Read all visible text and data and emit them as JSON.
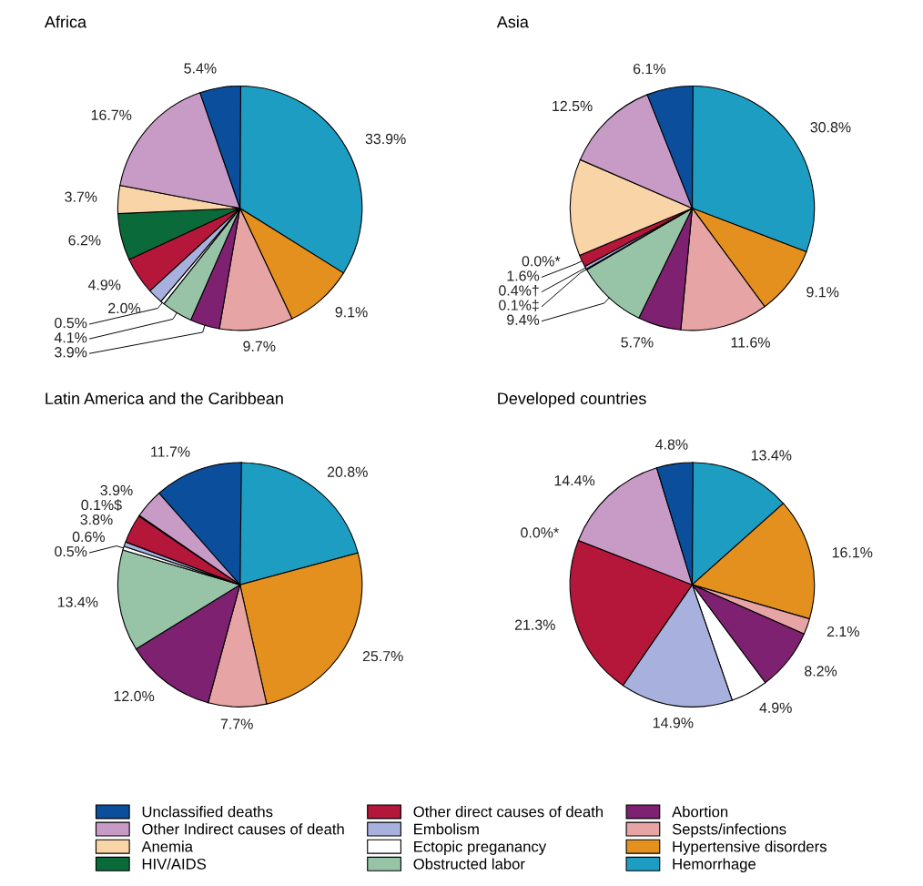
{
  "chart_data": [
    {
      "type": "pie",
      "title": "Africa",
      "categories": [
        "Hemorrhage",
        "Hypertensive disorders",
        "Sepsts/infections",
        "Abortion",
        "Obstructed labor",
        "Ectopic preganancy",
        "Embolism",
        "Other direct causes of death",
        "HIV/AIDS",
        "Anemia",
        "Other Indirect causes of death",
        "Unclassified deaths"
      ],
      "colors": [
        "#1e9dc2",
        "#e3901f",
        "#e6a4a4",
        "#7d2170",
        "#97c4a6",
        "#ffffff",
        "#a8b1de",
        "#b5173b",
        "#0b6a3a",
        "#f9d4a6",
        "#c89bc7",
        "#0b4f9c"
      ],
      "values": [
        33.9,
        9.1,
        9.7,
        3.9,
        4.1,
        0.5,
        2.0,
        4.9,
        6.2,
        3.7,
        16.7,
        5.4
      ],
      "value_labels": [
        "33.9%",
        "9.1%",
        "9.7%",
        "3.9%",
        "4.1%",
        "0.5%",
        "2.0%",
        "4.9%",
        "6.2%",
        "3.7%",
        "16.7%",
        "5.4%"
      ],
      "legend": "bottom"
    },
    {
      "type": "pie",
      "title": "Asia",
      "categories": [
        null,
        null,
        null,
        null,
        null,
        null,
        null,
        null,
        null,
        null,
        null,
        null
      ],
      "colors": [
        "#1e9dc2",
        "#e3901f",
        "#e6a4a4",
        "#7d2170",
        "#97c4a6",
        "#ffffff",
        "#a8b1de",
        "#b5173b",
        "#0b6a3a",
        "#f9d4a6",
        "#c89bc7",
        "#0b4f9c"
      ],
      "values": [
        30.8,
        9.1,
        11.6,
        5.7,
        9.4,
        0.1,
        0.4,
        1.6,
        0.0,
        12.8,
        12.5,
        6.1
      ],
      "value_labels": [
        "30.8%",
        "9.1%",
        "11.6%",
        "5.7%",
        "9.4%",
        "0.1%‡",
        "0.4%†",
        "1.6%",
        "0.0%*",
        null,
        "12.5%",
        "6.1%"
      ]
    },
    {
      "type": "pie",
      "title": "Latin America and the Caribbean",
      "categories": [
        null,
        null,
        null,
        null,
        null,
        null,
        null,
        null,
        null,
        null,
        null,
        null
      ],
      "colors": [
        "#1e9dc2",
        "#e3901f",
        "#e6a4a4",
        "#7d2170",
        "#97c4a6",
        "#ffffff",
        "#a8b1de",
        "#b5173b",
        "#0b6a3a",
        "#f9d4a6",
        "#c89bc7",
        "#0b4f9c"
      ],
      "values": [
        20.8,
        25.7,
        7.7,
        12.0,
        13.4,
        0.5,
        0.6,
        3.8,
        0.1,
        null,
        3.9,
        11.7
      ],
      "value_labels": [
        "20.8%",
        "25.7%",
        "7.7%",
        "12.0%",
        "13.4%",
        "0.5%",
        "0.6%",
        "3.8%",
        "0.1%$",
        null,
        "3.9%",
        "11.7%"
      ]
    },
    {
      "type": "pie",
      "title": "Developed countries",
      "categories": [
        null,
        null,
        null,
        null,
        null,
        null,
        null,
        null,
        null,
        null,
        null,
        null
      ],
      "colors": [
        "#1e9dc2",
        "#e3901f",
        "#e6a4a4",
        "#7d2170",
        "#97c4a6",
        "#ffffff",
        "#a8b1de",
        "#b5173b",
        "#0b6a3a",
        "#f9d4a6",
        "#c89bc7",
        "#0b4f9c"
      ],
      "values": [
        13.4,
        16.1,
        2.1,
        8.2,
        null,
        4.9,
        14.9,
        21.3,
        0.0,
        null,
        14.4,
        4.8
      ],
      "value_labels": [
        "13.4%",
        "16.1%",
        "2.1%",
        "8.2%",
        null,
        "4.9%",
        "14.9%",
        "21.3%",
        "0.0%*",
        null,
        "14.4%",
        "4.8%"
      ]
    }
  ]
}
